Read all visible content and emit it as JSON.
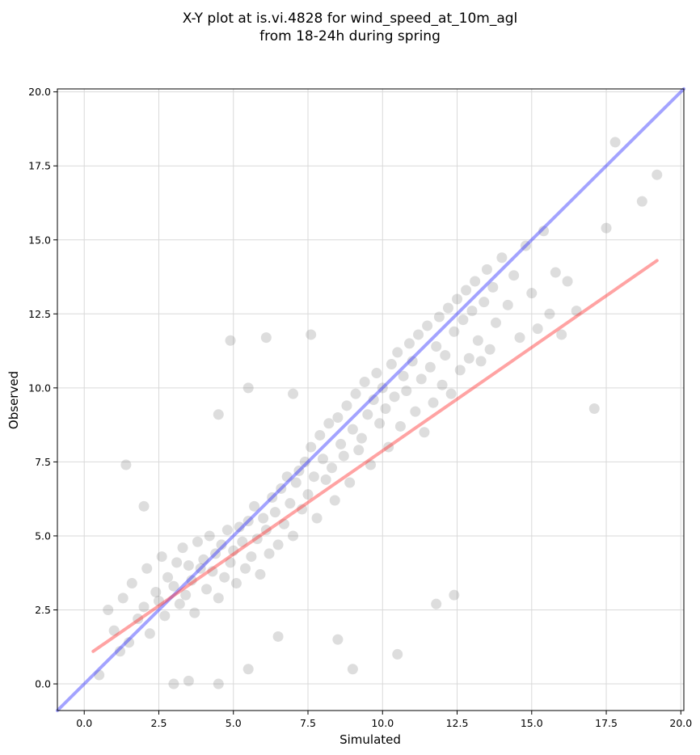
{
  "chart_data": {
    "type": "scatter",
    "title": [
      "X-Y plot at is.vi.4828 for wind_speed_at_10m_agl",
      "from 18-24h during spring"
    ],
    "xlabel": "Simulated",
    "ylabel": "Observed",
    "xlim": [
      -0.9,
      20.1
    ],
    "ylim": [
      -0.9,
      20.1
    ],
    "xticks": [
      0.0,
      2.5,
      5.0,
      7.5,
      10.0,
      12.5,
      15.0,
      17.5,
      20.0
    ],
    "xtick_labels": [
      "0.0",
      "2.5",
      "5.0",
      "7.5",
      "10.0",
      "12.5",
      "15.0",
      "17.5",
      "20.0"
    ],
    "yticks": [
      0.0,
      2.5,
      5.0,
      7.5,
      10.0,
      12.5,
      15.0,
      17.5,
      20.0
    ],
    "ytick_labels": [
      "0.0",
      "2.5",
      "5.0",
      "7.5",
      "10.0",
      "12.5",
      "15.0",
      "17.5",
      "20.0"
    ],
    "grid": true,
    "colors": {
      "points": "#808080",
      "identity_line": "#3333ff",
      "fit_line": "#ff3333"
    },
    "series": [
      {
        "kind": "scatter",
        "x": [
          0.5,
          0.8,
          1.0,
          1.2,
          1.3,
          1.5,
          1.6,
          1.8,
          2.0,
          2.1,
          2.2,
          2.4,
          2.5,
          2.6,
          2.7,
          2.8,
          3.0,
          3.1,
          3.2,
          3.3,
          3.4,
          3.5,
          3.6,
          3.7,
          3.8,
          3.9,
          4.0,
          4.1,
          4.2,
          4.3,
          4.4,
          4.5,
          4.6,
          4.7,
          4.8,
          4.9,
          5.0,
          5.1,
          5.2,
          5.3,
          5.4,
          5.5,
          5.6,
          5.7,
          5.8,
          5.9,
          6.0,
          6.1,
          6.2,
          6.3,
          6.4,
          6.5,
          6.6,
          6.7,
          6.8,
          6.9,
          7.0,
          7.1,
          7.2,
          7.3,
          7.4,
          7.5,
          7.6,
          7.7,
          7.8,
          7.9,
          8.0,
          8.1,
          8.2,
          8.3,
          8.4,
          8.5,
          8.6,
          8.7,
          8.8,
          8.9,
          9.0,
          9.1,
          9.2,
          9.3,
          9.4,
          9.5,
          9.6,
          9.7,
          9.8,
          9.9,
          10.0,
          10.1,
          10.2,
          10.3,
          10.4,
          10.5,
          10.6,
          10.7,
          10.8,
          10.9,
          11.0,
          11.1,
          11.2,
          11.3,
          11.4,
          11.5,
          11.6,
          11.7,
          11.8,
          11.9,
          12.0,
          12.1,
          12.2,
          12.3,
          12.4,
          12.5,
          12.6,
          12.7,
          12.8,
          12.9,
          13.0,
          13.1,
          13.2,
          13.3,
          13.4,
          13.5,
          13.6,
          13.7,
          13.8,
          14.0,
          14.2,
          14.4,
          14.6,
          14.8,
          15.0,
          15.2,
          15.4,
          15.6,
          15.8,
          16.0,
          16.2,
          16.5,
          17.1,
          17.5,
          17.8,
          18.7,
          19.2,
          1.4,
          2.0,
          3.0,
          4.5,
          5.5,
          6.5,
          7.0,
          8.5,
          9.0,
          10.5,
          11.8,
          12.4,
          4.9,
          5.5,
          4.5,
          3.5,
          6.1,
          7.6
        ],
        "y": [
          0.3,
          2.5,
          1.8,
          1.1,
          2.9,
          1.4,
          3.4,
          2.2,
          2.6,
          3.9,
          1.7,
          3.1,
          2.8,
          4.3,
          2.3,
          3.6,
          3.3,
          4.1,
          2.7,
          4.6,
          3.0,
          4.0,
          3.5,
          2.4,
          4.8,
          3.9,
          4.2,
          3.2,
          5.0,
          3.8,
          4.4,
          2.9,
          4.7,
          3.6,
          5.2,
          4.1,
          4.5,
          3.4,
          5.3,
          4.8,
          3.9,
          5.5,
          4.3,
          6.0,
          4.9,
          3.7,
          5.6,
          5.2,
          4.4,
          6.3,
          5.8,
          4.7,
          6.6,
          5.4,
          7.0,
          6.1,
          5.0,
          6.8,
          7.2,
          5.9,
          7.5,
          6.4,
          8.0,
          7.0,
          5.6,
          8.4,
          7.6,
          6.9,
          8.8,
          7.3,
          6.2,
          9.0,
          8.1,
          7.7,
          9.4,
          6.8,
          8.6,
          9.8,
          7.9,
          8.3,
          10.2,
          9.1,
          7.4,
          9.6,
          10.5,
          8.8,
          10.0,
          9.3,
          8.0,
          10.8,
          9.7,
          11.2,
          8.7,
          10.4,
          9.9,
          11.5,
          10.9,
          9.2,
          11.8,
          10.3,
          8.5,
          12.1,
          10.7,
          9.5,
          11.4,
          12.4,
          10.1,
          11.1,
          12.7,
          9.8,
          11.9,
          13.0,
          10.6,
          12.3,
          13.3,
          11.0,
          12.6,
          13.6,
          11.6,
          10.9,
          12.9,
          14.0,
          11.3,
          13.4,
          12.2,
          14.4,
          12.8,
          13.8,
          11.7,
          14.8,
          13.2,
          12.0,
          15.3,
          12.5,
          13.9,
          11.8,
          13.6,
          12.6,
          9.3,
          15.4,
          18.3,
          16.3,
          17.2,
          7.4,
          6.0,
          0.0,
          0.0,
          0.5,
          1.6,
          9.8,
          1.5,
          0.5,
          1.0,
          2.7,
          3.0,
          11.6,
          10.0,
          9.1,
          0.1,
          11.7,
          11.8
        ]
      },
      {
        "kind": "line",
        "name": "",
        "x": [
          -0.9,
          20.1
        ],
        "y": [
          -0.9,
          20.1
        ]
      },
      {
        "kind": "line",
        "name": "",
        "x": [
          0.3,
          19.2
        ],
        "y": [
          1.1,
          14.3
        ]
      }
    ]
  }
}
